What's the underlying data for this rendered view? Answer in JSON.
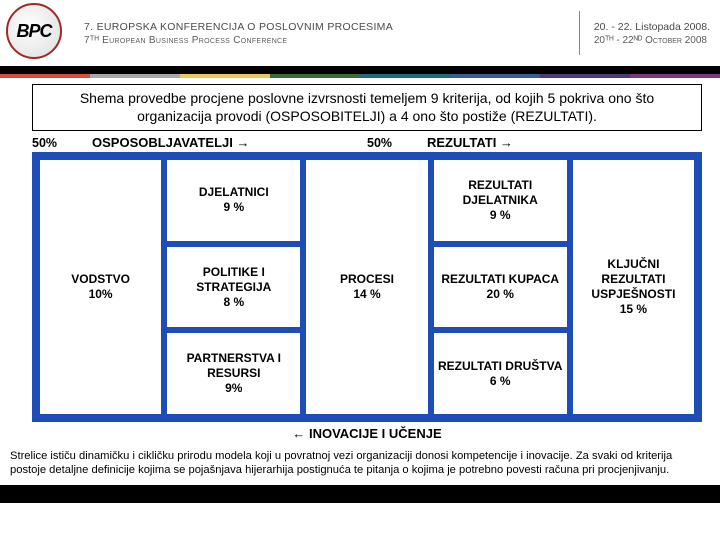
{
  "header": {
    "logo_text": "BPC",
    "line1": "7. Europska konferencija o poslovnim procesima",
    "line2": "7ᵀᴴ European Business Process Conference",
    "date1": "20. - 22. Listopada 2008.",
    "date2": "20ᵀᴴ - 22ᴺᴰ October 2008"
  },
  "strip_colors": [
    "#d84e3a",
    "#a8a8a8",
    "#e6c95a",
    "#3a6a3a",
    "#1f6a73",
    "#3a5a9a",
    "#4a3a7a",
    "#7a3a7a"
  ],
  "title": "Shema provedbe procjene poslovne izvrsnosti temeljem 9 kriterija, od kojih 5 pokriva ono što organizacija provodi (OSPOSOBITELJI) a 4 ono što postiže (REZULTATI).",
  "section_headers": {
    "left_pct": "50%",
    "left_label": "OSPOSOBLJAVATELJI →",
    "right_pct": "50%",
    "right_label": "REZULTATI →"
  },
  "diagram": {
    "background_color": "#1e4db7",
    "box_bg": "#ffffff",
    "col1": {
      "name": "VODSTVO",
      "pct": "10%"
    },
    "col2": [
      {
        "name": "DJELATNICI",
        "pct": "9 %"
      },
      {
        "name": "POLITIKE I STRATEGIJA",
        "pct": "8 %"
      },
      {
        "name": "PARTNERSTVA I RESURSI",
        "pct": "9%"
      }
    ],
    "col3": {
      "name": "PROCESI",
      "pct": "14 %"
    },
    "col4": [
      {
        "name": "REZULTATI DJELATNIKA",
        "pct": "9 %"
      },
      {
        "name": "REZULTATI KUPACA",
        "pct": "20 %"
      },
      {
        "name": "REZULTATI DRUŠTVA",
        "pct": "6 %"
      }
    ],
    "col5": {
      "name": "KLJUČNI REZULTATI USPJEŠNOSTI",
      "pct": "15 %"
    }
  },
  "bottom_label": "← INOVACIJE I UČENJE",
  "footer": "Strelice ističu dinamičku i cikličku prirodu modela koji u povratnoj vezi organizaciji donosi kompetencije i inovacije. Za svaki od kriterija postoje detaljne definicije kojima se pojašnjava hijerarhija postignuća te pitanja o kojima je potrebno povesti računa pri procjenjivanju."
}
